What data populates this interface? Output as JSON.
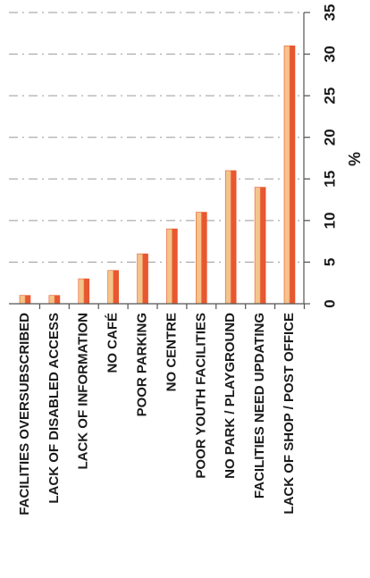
{
  "chart_data": {
    "type": "bar",
    "orientation": "horizontal-bars-rotated-page",
    "categories": [
      "FACILITIES OVERSUBSCRIBED",
      "LACK OF DISABLED ACCESS",
      "LACK OF INFORMATION",
      "NO CAFÉ",
      "POOR PARKING",
      "NO CENTRE",
      "POOR YOUTH FACILITIES",
      "NO PARK / PLAYGROUND",
      "FACILITIES NEED UPDATING",
      "LACK OF SHOP / POST OFFICE"
    ],
    "values": [
      1,
      1,
      3,
      4,
      6,
      9,
      11,
      16,
      14,
      31
    ],
    "xlabel": "",
    "ylabel": "%",
    "ylim": [
      0,
      35
    ],
    "ticks": [
      "0",
      "5",
      "10",
      "15",
      "20",
      "25",
      "30",
      "35"
    ],
    "grid": true,
    "bar_color": "#e8572f",
    "bar_highlight": "#f4c48a"
  }
}
